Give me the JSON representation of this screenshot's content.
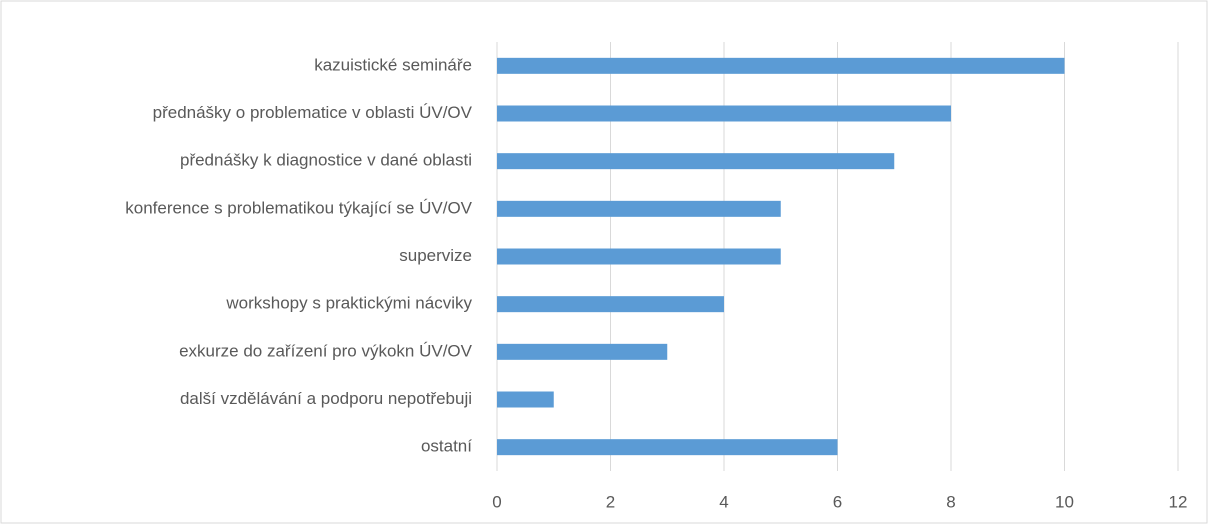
{
  "chart_data": {
    "type": "bar",
    "orientation": "horizontal",
    "categories": [
      "kazuistické semináře",
      "přednášky o problematice v oblasti ÚV/OV",
      "přednášky k diagnostice v dané oblasti",
      "konference s problematikou týkající se ÚV/OV",
      "supervize",
      "workshopy s praktickými nácviky",
      "exkurze do zařízení pro výkokn ÚV/OV",
      "další vzdělávání a podporu nepotřebuji",
      "ostatní"
    ],
    "values": [
      10,
      8,
      7,
      5,
      5,
      4,
      3,
      1,
      6
    ],
    "color": "#5b9bd5",
    "xlim": [
      0,
      12
    ],
    "xticks": [
      0,
      2,
      4,
      6,
      8,
      10,
      12
    ],
    "grid": true
  }
}
